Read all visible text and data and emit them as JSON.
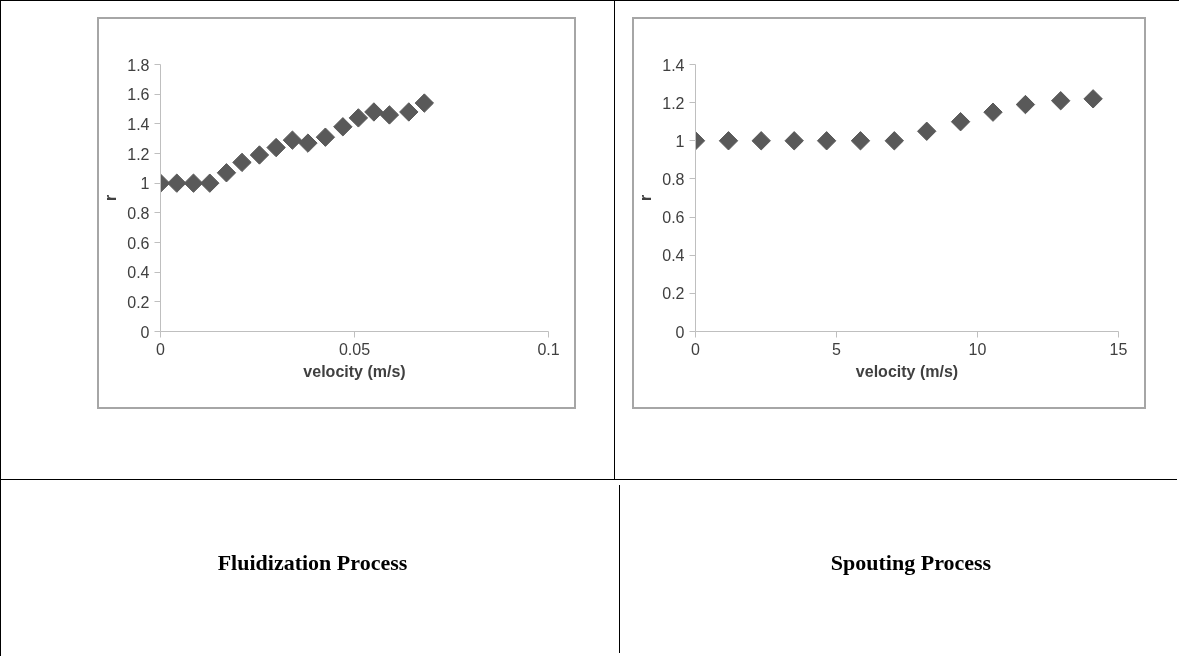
{
  "chart_data": [
    {
      "type": "scatter",
      "xlabel": "velocity (m/s)",
      "ylabel": "r",
      "marker": "diamond",
      "grid": false,
      "x": [
        0,
        0.0042,
        0.0085,
        0.0127,
        0.017,
        0.021,
        0.0255,
        0.0298,
        0.034,
        0.038,
        0.0425,
        0.047,
        0.051,
        0.055,
        0.059,
        0.064,
        0.068
      ],
      "series": [
        {
          "color": "#595959",
          "values": [
            1.0,
            1.0,
            1.0,
            1.0,
            1.07,
            1.14,
            1.19,
            1.24,
            1.29,
            1.27,
            1.31,
            1.38,
            1.44,
            1.48,
            1.46,
            1.48,
            1.54
          ]
        }
      ],
      "xlim": [
        0,
        0.1
      ],
      "xticks": [
        0,
        0.05,
        0.1
      ],
      "ylim": [
        0,
        1.8
      ],
      "yticks": [
        0,
        0.2,
        0.4,
        0.6,
        0.8,
        1,
        1.2,
        1.4,
        1.6,
        1.8
      ],
      "annotations": [
        "Fluidization Process"
      ]
    },
    {
      "type": "scatter",
      "xlabel": "velocity (m/s)",
      "ylabel": "r",
      "marker": "diamond",
      "grid": false,
      "x": [
        0,
        1.17,
        2.33,
        3.5,
        4.65,
        5.85,
        7.05,
        8.2,
        9.4,
        10.55,
        11.7,
        12.95,
        14.1
      ],
      "series": [
        {
          "color": "#595959",
          "values": [
            1.0,
            1.0,
            1.0,
            1.0,
            1.0,
            1.0,
            1.0,
            1.05,
            1.1,
            1.15,
            1.19,
            1.21,
            1.22
          ]
        }
      ],
      "xlim": [
        0,
        15
      ],
      "xticks": [
        0,
        5,
        10,
        15
      ],
      "ylim": [
        0,
        1.4
      ],
      "yticks": [
        0,
        0.2,
        0.4,
        0.6,
        0.8,
        1,
        1.2,
        1.4
      ],
      "annotations": [
        "Spouting Process"
      ]
    }
  ]
}
